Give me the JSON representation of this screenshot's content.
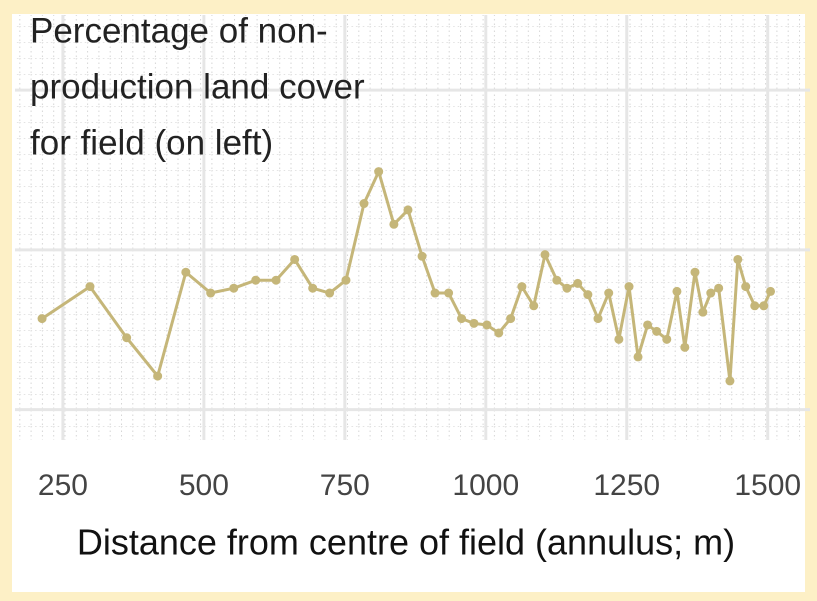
{
  "chart_data": {
    "type": "line",
    "title": [
      "Percentage of non-",
      "production land cover",
      "for field (on left)"
    ],
    "x_label": "Distance from centre of field (annulus; m)",
    "x": [
      213,
      298,
      363,
      418,
      468,
      512,
      553,
      592,
      628,
      661,
      693,
      723,
      752,
      784,
      810,
      837,
      862,
      887,
      910,
      934,
      957,
      979,
      1002,
      1023,
      1044,
      1064,
      1085,
      1105,
      1126,
      1144,
      1163,
      1181,
      1199,
      1218,
      1236,
      1254,
      1270,
      1287,
      1303,
      1321,
      1339,
      1353,
      1371,
      1385,
      1399,
      1413,
      1433,
      1447,
      1461,
      1477,
      1493,
      1505
    ],
    "series": [
      {
        "color": "#c5b679",
        "values": [
          15.7,
          17.7,
          14.5,
          12.1,
          18.6,
          17.3,
          17.6,
          18.1,
          18.1,
          19.4,
          17.6,
          17.3,
          18.1,
          22.9,
          24.9,
          21.6,
          22.5,
          19.6,
          17.3,
          17.3,
          15.7,
          15.4,
          15.3,
          14.8,
          15.7,
          17.7,
          16.5,
          19.7,
          18.1,
          17.6,
          17.9,
          17.2,
          15.7,
          17.3,
          14.4,
          17.7,
          13.3,
          15.3,
          14.9,
          14.4,
          17.4,
          13.9,
          18.6,
          16.1,
          17.3,
          17.6,
          11.8,
          19.4,
          17.7,
          16.5,
          16.5,
          17.4
        ]
      }
    ],
    "xlim": [
      165,
      1575
    ],
    "xticks": [
      250,
      500,
      750,
      1000,
      1250,
      1500
    ],
    "ylim": [
      8.1,
      34.7
    ],
    "yticks": [
      10,
      20,
      30
    ],
    "grid": true
  }
}
